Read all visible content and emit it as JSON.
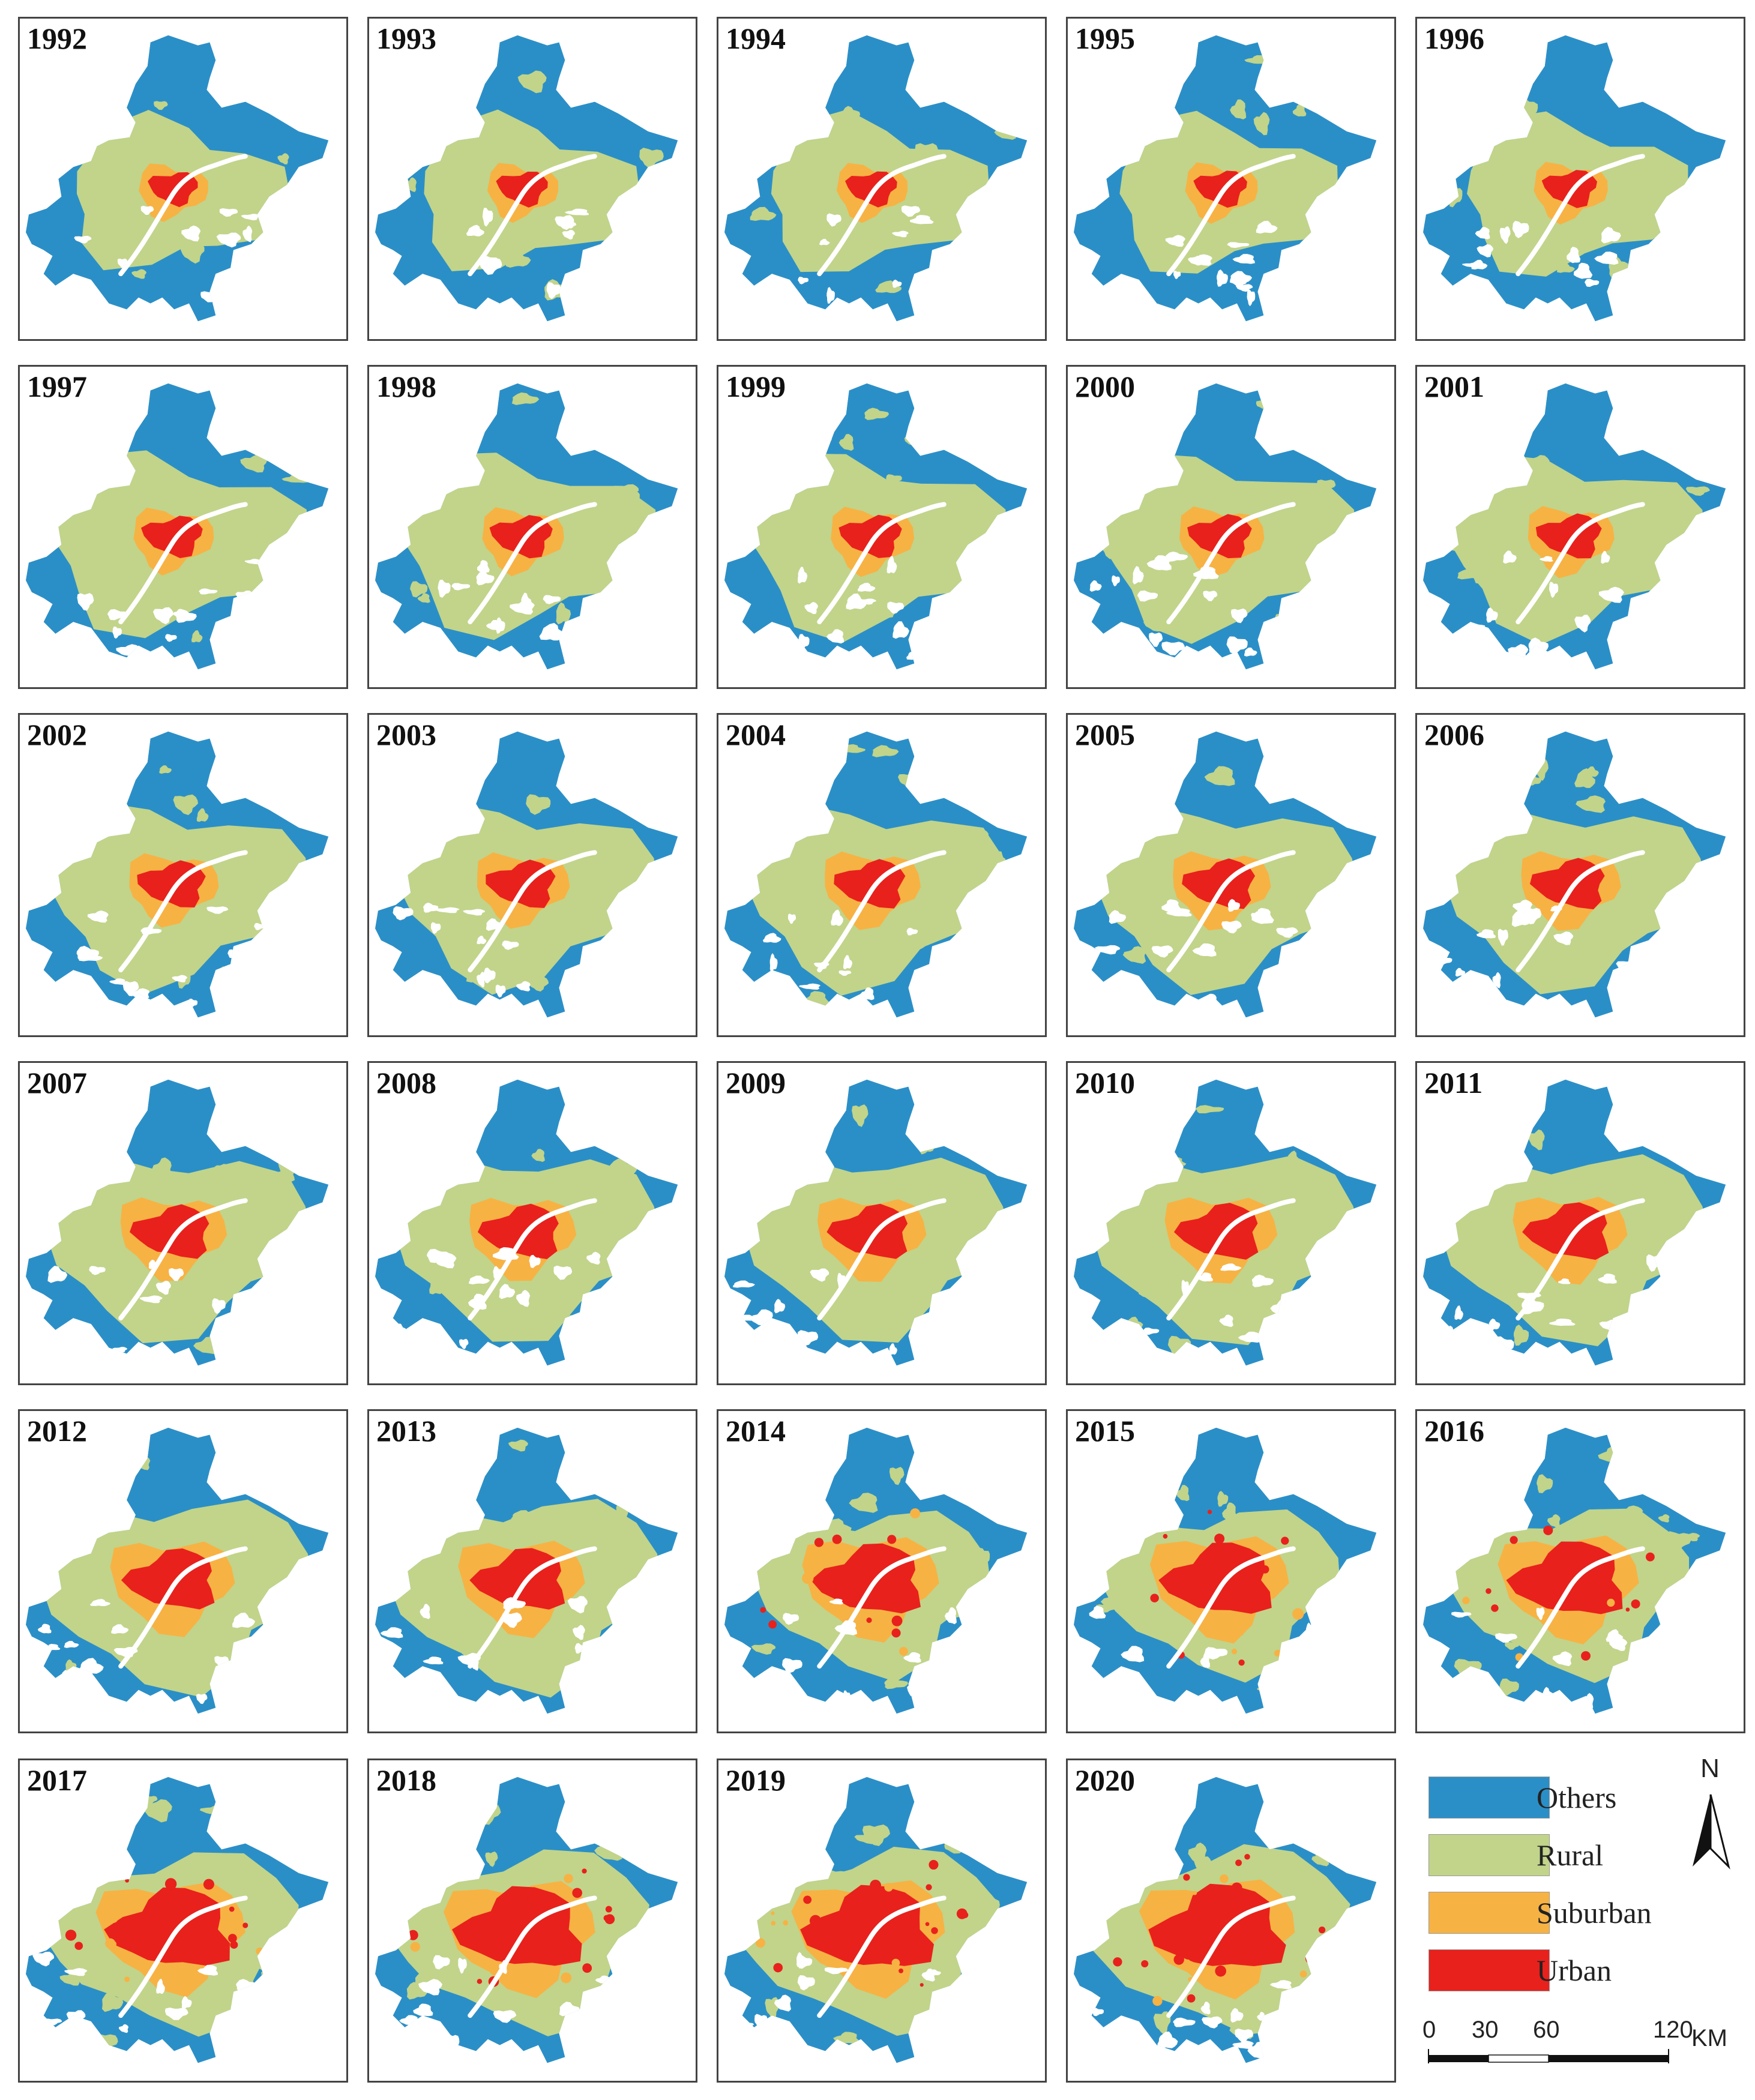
{
  "figure": {
    "panels": [
      {
        "year": "1992",
        "urban": 0.33,
        "suburban": 0.45,
        "rural": 0.78,
        "spots": 0.2
      },
      {
        "year": "1993",
        "urban": 0.34,
        "suburban": 0.46,
        "rural": 0.79,
        "spots": 0.2
      },
      {
        "year": "1994",
        "urban": 0.34,
        "suburban": 0.46,
        "rural": 0.8,
        "spots": 0.22
      },
      {
        "year": "1995",
        "urban": 0.35,
        "suburban": 0.47,
        "rural": 0.8,
        "spots": 0.24
      },
      {
        "year": "1996",
        "urban": 0.36,
        "suburban": 0.48,
        "rural": 0.81,
        "spots": 0.26
      },
      {
        "year": "1997",
        "urban": 0.4,
        "suburban": 0.52,
        "rural": 0.92,
        "spots": 0.3
      },
      {
        "year": "1998",
        "urban": 0.41,
        "suburban": 0.53,
        "rural": 0.92,
        "spots": 0.3
      },
      {
        "year": "1999",
        "urban": 0.41,
        "suburban": 0.54,
        "rural": 0.93,
        "spots": 0.3
      },
      {
        "year": "2000",
        "urban": 0.42,
        "suburban": 0.55,
        "rural": 0.93,
        "spots": 0.3
      },
      {
        "year": "2001",
        "urban": 0.43,
        "suburban": 0.56,
        "rural": 0.93,
        "spots": 0.3
      },
      {
        "year": "2002",
        "urban": 0.45,
        "suburban": 0.58,
        "rural": 0.94,
        "spots": 0.3
      },
      {
        "year": "2003",
        "urban": 0.46,
        "suburban": 0.6,
        "rural": 0.94,
        "spots": 0.3
      },
      {
        "year": "2004",
        "urban": 0.47,
        "suburban": 0.62,
        "rural": 0.95,
        "spots": 0.3
      },
      {
        "year": "2005",
        "urban": 0.48,
        "suburban": 0.63,
        "rural": 0.95,
        "spots": 0.3
      },
      {
        "year": "2006",
        "urban": 0.49,
        "suburban": 0.64,
        "rural": 0.95,
        "spots": 0.3
      },
      {
        "year": "2007",
        "urban": 0.52,
        "suburban": 0.68,
        "rural": 0.97,
        "spots": 0.3
      },
      {
        "year": "2008",
        "urban": 0.53,
        "suburban": 0.68,
        "rural": 0.97,
        "spots": 0.3
      },
      {
        "year": "2009",
        "urban": 0.53,
        "suburban": 0.69,
        "rural": 0.97,
        "spots": 0.3
      },
      {
        "year": "2010",
        "urban": 0.55,
        "suburban": 0.71,
        "rural": 0.98,
        "spots": 0.3
      },
      {
        "year": "2011",
        "urban": 0.56,
        "suburban": 0.72,
        "rural": 0.98,
        "spots": 0.3
      },
      {
        "year": "2012",
        "urban": 0.6,
        "suburban": 0.78,
        "rural": 1.0,
        "spots": 0.3
      },
      {
        "year": "2013",
        "urban": 0.61,
        "suburban": 0.79,
        "rural": 1.0,
        "spots": 0.3
      },
      {
        "year": "2014",
        "urban": 0.7,
        "suburban": 0.85,
        "rural": 0.86,
        "spots": 0.6
      },
      {
        "year": "2015",
        "urban": 0.72,
        "suburban": 0.86,
        "rural": 0.87,
        "spots": 0.65
      },
      {
        "year": "2016",
        "urban": 0.74,
        "suburban": 0.87,
        "rural": 0.88,
        "spots": 0.7
      },
      {
        "year": "2017",
        "urban": 0.8,
        "suburban": 0.92,
        "rural": 0.93,
        "spots": 0.8
      },
      {
        "year": "2018",
        "urban": 0.82,
        "suburban": 0.93,
        "rural": 0.94,
        "spots": 0.85
      },
      {
        "year": "2019",
        "urban": 0.84,
        "suburban": 0.94,
        "rural": 0.95,
        "spots": 0.9
      },
      {
        "year": "2020",
        "urban": 0.86,
        "suburban": 0.95,
        "rural": 0.96,
        "spots": 0.95
      }
    ]
  },
  "legend": {
    "items": [
      {
        "label": "Others",
        "color": "#2b8fc7"
      },
      {
        "label": "Rural",
        "color": "#c1d48a"
      },
      {
        "label": "Suburban",
        "color": "#f7b244"
      },
      {
        "label": "Urban",
        "color": "#e8211c"
      }
    ]
  },
  "north_arrow": {
    "label": "N"
  },
  "scale_bar": {
    "ticks": [
      "0",
      "30",
      "60",
      "120"
    ],
    "unit": "KM"
  },
  "colors": {
    "others": "#2b8fc7",
    "rural": "#c1d48a",
    "suburban": "#f7b244",
    "urban": "#e8211c",
    "river": "#ffffff",
    "frame": "#444444"
  }
}
